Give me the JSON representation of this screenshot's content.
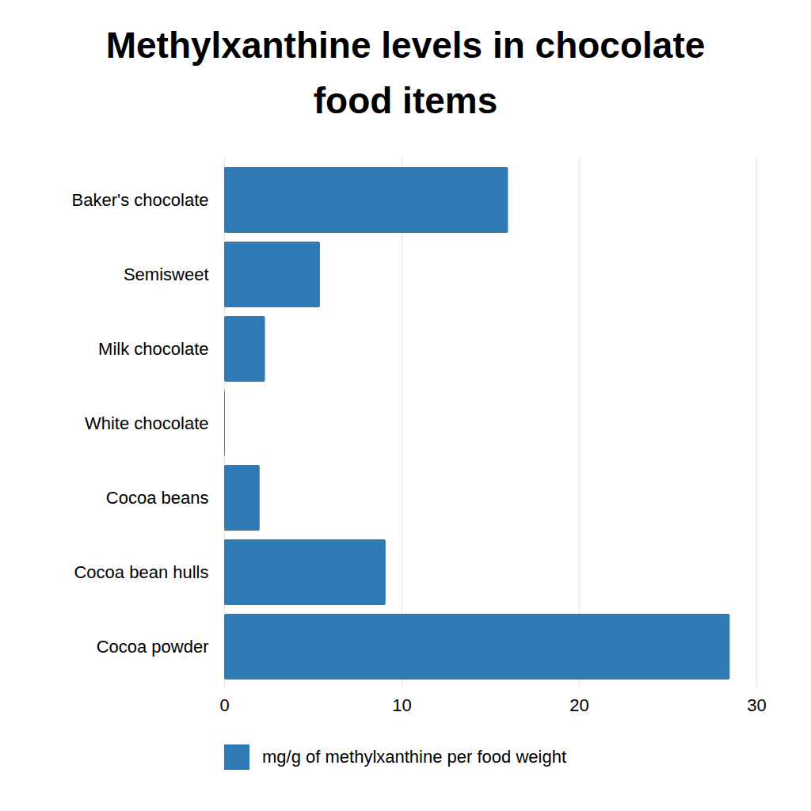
{
  "chart_data": {
    "type": "bar",
    "title": "Methylxanthine levels in chocolate food items",
    "orientation": "horizontal",
    "categories": [
      "Baker's chocolate",
      "Semisweet",
      "Milk chocolate",
      "White chocolate",
      "Cocoa beans",
      "Cocoa bean hulls",
      "Cocoa powder"
    ],
    "series": [
      {
        "name": "mg/g of methylxanthine per food weight",
        "color": "#2e7bb4",
        "values": [
          16.0,
          5.4,
          2.3,
          0.04,
          2.0,
          9.1,
          28.5
        ]
      }
    ],
    "xlim": [
      0,
      30
    ],
    "xticks": [
      0,
      10,
      20,
      30
    ],
    "grid": true,
    "legend": "bottom"
  }
}
